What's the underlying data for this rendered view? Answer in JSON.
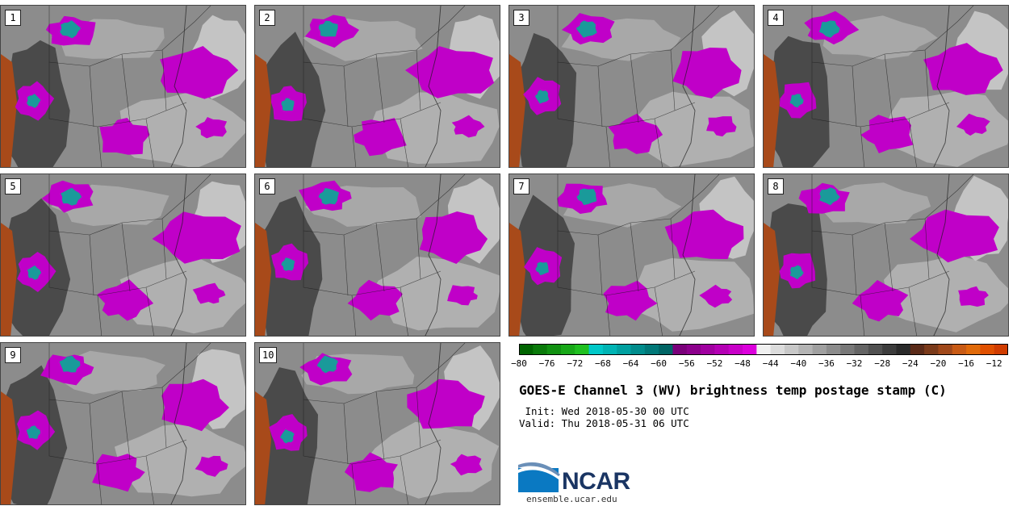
{
  "panels": [
    {
      "number": "1"
    },
    {
      "number": "2"
    },
    {
      "number": "3"
    },
    {
      "number": "4"
    },
    {
      "number": "5"
    },
    {
      "number": "6"
    },
    {
      "number": "7"
    },
    {
      "number": "8"
    },
    {
      "number": "9"
    },
    {
      "number": "10"
    }
  ],
  "colorbar": {
    "tick_labels": [
      "−80",
      "−76",
      "−72",
      "−68",
      "−64",
      "−60",
      "−56",
      "−52",
      "−48",
      "−44",
      "−40",
      "−36",
      "−32",
      "−28",
      "−24",
      "−20",
      "−16",
      "−12"
    ],
    "range": [
      -80,
      -10
    ],
    "step": 2,
    "colors": [
      "#006400",
      "#0a7a0a",
      "#119111",
      "#18a818",
      "#20c020",
      "#00c8c8",
      "#00b4b4",
      "#00a0a0",
      "#008c8c",
      "#007878",
      "#006464",
      "#7a007a",
      "#8c008c",
      "#a000a0",
      "#b400b4",
      "#c800c8",
      "#dc00dc",
      "#f0f0f0",
      "#dcdcdc",
      "#c8c8c8",
      "#b4b4b4",
      "#a0a0a0",
      "#8c8c8c",
      "#787878",
      "#646464",
      "#505050",
      "#3c3c3c",
      "#2a2a2a",
      "#5a2a18",
      "#7a3a1a",
      "#a0481a",
      "#c85a14",
      "#e06a0a",
      "#e05000",
      "#d03c00"
    ]
  },
  "title": "GOES-E Channel 3 (WV) brightness temp postage stamp (C)",
  "init_line": " Init: Wed 2018-05-30 00 UTC",
  "valid_line": "Valid: Thu 2018-05-31 06 UTC",
  "logo": {
    "text": "NCAR",
    "url": "ensemble.ucar.edu"
  },
  "colors": {
    "magenta": "#c000c8",
    "teal": "#1a9a9a",
    "orange": "#a84a1a",
    "dark": "#4a4a4a",
    "light": "#b0b0b0"
  }
}
